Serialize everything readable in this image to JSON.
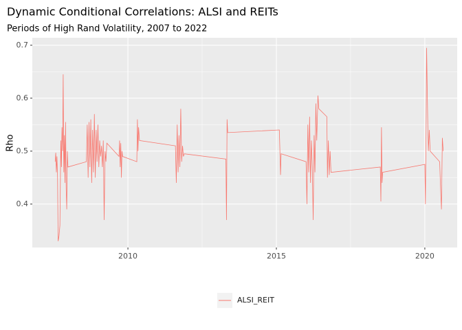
{
  "chart_data": {
    "type": "line",
    "title": "Dynamic Conditional Correlations: ALSI and REITs",
    "subtitle": "Periods of High Rand Volatility, 2007 to 2022",
    "y_label": "Rho",
    "x": [
      2007.55,
      2007.57,
      2007.59,
      2007.61,
      2007.63,
      2007.65,
      2007.68,
      2007.71,
      2007.74,
      2007.76,
      2007.78,
      2007.8,
      2007.82,
      2007.84,
      2007.86,
      2007.88,
      2007.9,
      2007.92,
      2007.94,
      2007.96,
      2007.98,
      2008.6,
      2008.63,
      2008.66,
      2008.69,
      2008.72,
      2008.75,
      2008.78,
      2008.81,
      2008.84,
      2008.87,
      2008.9,
      2008.93,
      2008.96,
      2008.99,
      2009.02,
      2009.05,
      2009.08,
      2009.11,
      2009.14,
      2009.17,
      2009.2,
      2009.23,
      2009.26,
      2009.29,
      2009.7,
      2009.72,
      2009.74,
      2009.76,
      2009.78,
      2009.8,
      2009.82,
      2010.3,
      2010.32,
      2010.34,
      2010.36,
      2010.39,
      2011.6,
      2011.63,
      2011.66,
      2011.69,
      2011.72,
      2011.75,
      2011.78,
      2011.81,
      2011.84,
      2011.87,
      2011.9,
      2013.3,
      2013.32,
      2013.34,
      2013.36,
      2015.1,
      2015.12,
      2015.14,
      2015.16,
      2016.0,
      2016.03,
      2016.06,
      2016.09,
      2016.12,
      2016.15,
      2016.18,
      2016.21,
      2016.24,
      2016.27,
      2016.3,
      2016.33,
      2016.36,
      2016.4,
      2016.43,
      2016.7,
      2016.72,
      2016.75,
      2016.78,
      2016.81,
      2016.84,
      2018.5,
      2018.52,
      2018.54,
      2018.56,
      2018.58,
      2020.0,
      2020.02,
      2020.04,
      2020.06,
      2020.08,
      2020.1,
      2020.12,
      2020.15,
      2020.18,
      2020.5,
      2020.53,
      2020.56,
      2020.59,
      2020.62
    ],
    "series": [
      {
        "name": "ALSI_REIT",
        "color": "#F8766D",
        "values": [
          0.48,
          0.497,
          0.46,
          0.49,
          0.45,
          0.33,
          0.34,
          0.36,
          0.52,
          0.47,
          0.545,
          0.5,
          0.645,
          0.46,
          0.53,
          0.44,
          0.555,
          0.43,
          0.39,
          0.5,
          0.47,
          0.48,
          0.55,
          0.45,
          0.555,
          0.47,
          0.56,
          0.44,
          0.54,
          0.46,
          0.57,
          0.45,
          0.54,
          0.48,
          0.55,
          0.47,
          0.52,
          0.49,
          0.51,
          0.47,
          0.52,
          0.37,
          0.5,
          0.48,
          0.515,
          0.49,
          0.52,
          0.47,
          0.515,
          0.45,
          0.5,
          0.49,
          0.48,
          0.56,
          0.5,
          0.545,
          0.52,
          0.51,
          0.44,
          0.55,
          0.46,
          0.53,
          0.47,
          0.58,
          0.48,
          0.51,
          0.49,
          0.495,
          0.485,
          0.37,
          0.56,
          0.535,
          0.54,
          0.5,
          0.455,
          0.495,
          0.48,
          0.4,
          0.55,
          0.46,
          0.565,
          0.44,
          0.52,
          0.47,
          0.37,
          0.53,
          0.46,
          0.59,
          0.52,
          0.605,
          0.58,
          0.565,
          0.45,
          0.52,
          0.455,
          0.5,
          0.46,
          0.47,
          0.405,
          0.545,
          0.44,
          0.46,
          0.475,
          0.4,
          0.53,
          0.695,
          0.62,
          0.55,
          0.5,
          0.54,
          0.5,
          0.48,
          0.43,
          0.39,
          0.525,
          0.5
        ]
      }
    ],
    "xlim": [
      2006.78,
      2021.09
    ],
    "xticks": [
      2010,
      2015,
      2020
    ],
    "ylim": [
      0.318,
      0.714
    ],
    "yticks": [
      0.4,
      0.5,
      0.6,
      0.7
    ],
    "grid": true,
    "legend_position": "bottom"
  }
}
